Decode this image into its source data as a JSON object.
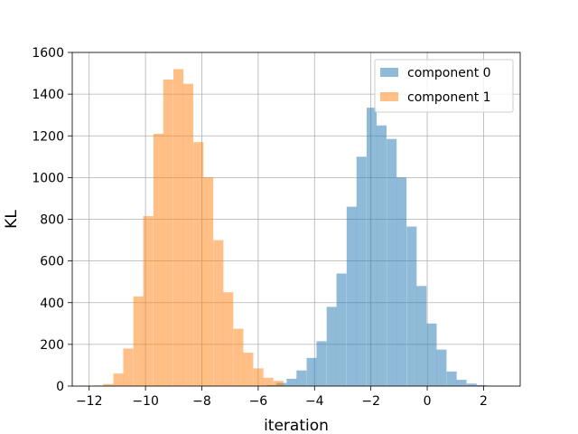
{
  "chart_data": {
    "type": "bar",
    "xlabel": "iteration",
    "ylabel": "KL",
    "xlim": [
      -12.6,
      3.3
    ],
    "ylim": [
      0,
      1600
    ],
    "xticks": [
      -12,
      -10,
      -8,
      -6,
      -4,
      -2,
      0,
      2
    ],
    "yticks": [
      0,
      200,
      400,
      600,
      800,
      1000,
      1200,
      1400,
      1600
    ],
    "grid": true,
    "legend_position": "top-right",
    "bin_width": 0.355,
    "series": [
      {
        "name": "component 0",
        "color": "#1f77b4",
        "opacity": 0.5,
        "bin_starts": [
          -5.7,
          -5.35,
          -4.99,
          -4.64,
          -4.28,
          -3.93,
          -3.57,
          -3.22,
          -2.86,
          -2.51,
          -2.15,
          -1.8,
          -1.44,
          -1.09,
          -0.73,
          -0.38,
          -0.02,
          0.33,
          0.69,
          1.04,
          1.4,
          1.75,
          2.11
        ],
        "values": [
          5,
          15,
          35,
          75,
          135,
          215,
          380,
          540,
          860,
          1100,
          1335,
          1250,
          1185,
          1000,
          765,
          480,
          300,
          175,
          70,
          30,
          12,
          5,
          2
        ]
      },
      {
        "name": "component 1",
        "color": "#ff7f0e",
        "opacity": 0.5,
        "bin_starts": [
          -11.85,
          -11.5,
          -11.14,
          -10.79,
          -10.43,
          -10.08,
          -9.72,
          -9.37,
          -9.01,
          -8.66,
          -8.3,
          -7.95,
          -7.59,
          -7.24,
          -6.88,
          -6.53,
          -6.17,
          -5.82,
          -5.46
        ],
        "values": [
          3,
          10,
          60,
          180,
          430,
          815,
          1210,
          1470,
          1520,
          1450,
          1170,
          1000,
          700,
          450,
          275,
          160,
          85,
          40,
          25
        ]
      }
    ]
  }
}
